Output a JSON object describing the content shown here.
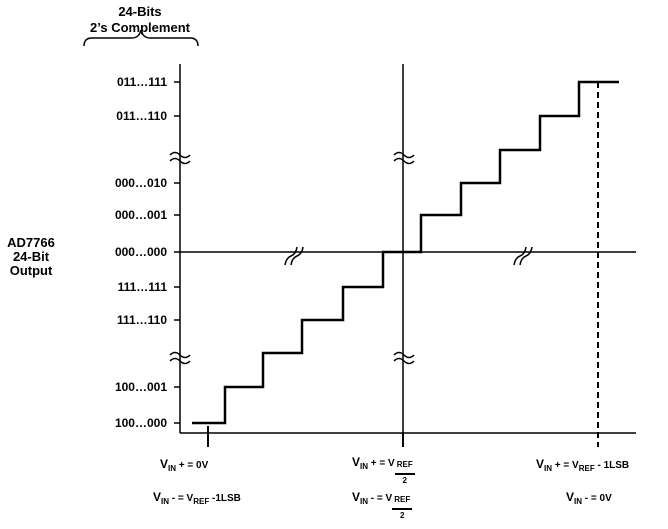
{
  "header": {
    "line1": "24-Bits",
    "line2": "2’s Complement"
  },
  "y_axis_title": {
    "line1": "AD7766",
    "line2": "24-Bit",
    "line3": "Output"
  },
  "codes": [
    "011…111",
    "011…110",
    "000…010",
    "000…001",
    "000…000",
    "111…111",
    "111…110",
    "100…001",
    "100…000"
  ],
  "x_labels": {
    "left_plus": {
      "sym": "V",
      "sub": "IN",
      "op": "+ = 0V"
    },
    "left_minus": {
      "sym": "V",
      "sub": "IN",
      "op": "- = V",
      "sub2": "REF",
      "tail": "-1LSB"
    },
    "mid_plus": {
      "sym": "V",
      "sub": "IN",
      "op": "+ = V",
      "sub2": "REF",
      "den": "2"
    },
    "mid_minus": {
      "sym": "V",
      "sub": "IN",
      "op": "- = V",
      "sub2": "REF",
      "den": "2"
    },
    "right_plus": {
      "sym": "V",
      "sub": "IN",
      "op": "+ = V",
      "sub2": "REF",
      "tail": "- 1LSB"
    },
    "right_minus": {
      "sym": "V",
      "sub": "IN",
      "op": "- = 0V"
    }
  },
  "colors": {
    "line": "#000000",
    "background": "#ffffff"
  }
}
